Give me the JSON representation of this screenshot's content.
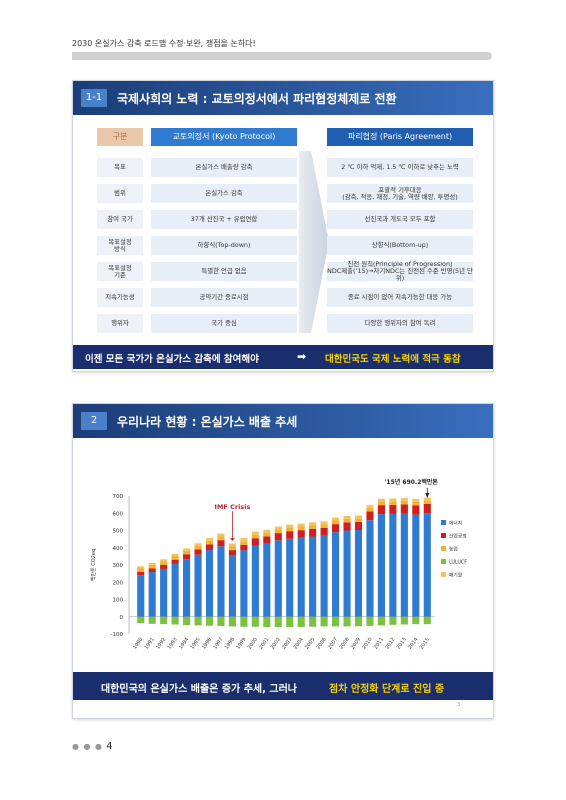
{
  "header": {
    "text": "2030 온실가스 감축 로드맵 수정·보완, 쟁점을 논하다!"
  },
  "slide1": {
    "num": "1-1",
    "title": "국제사회의 노력 : 교토의정서에서 파리협정체제로 전환",
    "col_gubun": "구분",
    "col_kyoto": "교토의정서 (Kyoto Protocol)",
    "col_paris": "파리협정 (Paris Agreement)",
    "rows": [
      {
        "label": "목표",
        "kyoto": "온실가스 배출량 감축",
        "paris": "2 ℃ 이하 억제, 1.5 ℃ 이하로 낮추는 노력"
      },
      {
        "label": "범위",
        "kyoto": "온실가스 감축",
        "paris": "포괄적 기후대응\n(감축, 적응, 재정, 기술, 역량 배양, 투명성)"
      },
      {
        "label": "참여 국가",
        "kyoto": "37개 선진국 + 유럽연합",
        "paris": "선진국과 개도국 모두 포함"
      },
      {
        "label": "목표설정\n방식",
        "kyoto": "하향식(Top-down)",
        "paris": "상향식(Bottom-up)"
      },
      {
        "label": "목표설정\n기준",
        "kyoto": "특별한 언급 없음",
        "paris": "진전 원칙(Principle of Progression)\nNDC제출(’15)→차기NDC는 진전된 수준 반영(5년 단위)"
      },
      {
        "label": "지속가능성",
        "kyoto": "공약기간 종료시점",
        "paris": "종료 시점이 없어 지속가능한 대응 가능"
      },
      {
        "label": "행위자",
        "kyoto": "국가 중심",
        "paris": "다양한 행위자의 참여 독려"
      }
    ],
    "footer_left": "이젠 모든 국가가 온실가스 감축에 참여해야",
    "footer_arrow": "➡",
    "footer_right": "대한민국도 국제 노력에 적극 동참"
  },
  "slide2": {
    "num": "2",
    "title": "우리나라 현황 : 온실가스 배출 추세",
    "footer_left": "대한민국의 온실가스 배출은 증가 추세,  그러나",
    "footer_right": "점차 안정화 단계로 진입 중",
    "page_marker": "3"
  },
  "page_number": "4",
  "page_dots": "● ● ●",
  "colors": {
    "energy": "#2f7bd1",
    "industrial": "#d11f1f",
    "agriculture": "#f2b233",
    "lulucf": "#7cc142",
    "waste": "#f5c35b",
    "nav": "#1b2f6e",
    "highlight": "#f6d000"
  },
  "chart_data": {
    "type": "bar",
    "stacked": true,
    "categories": [
      "1990",
      "1991",
      "1992",
      "1993",
      "1994",
      "1995",
      "1996",
      "1997",
      "1998",
      "1999",
      "2000",
      "2001",
      "2002",
      "2003",
      "2004",
      "2005",
      "2006",
      "2007",
      "2008",
      "2009",
      "2010",
      "2011",
      "2012",
      "2013",
      "2014",
      "2015"
    ],
    "series": [
      {
        "name": "에너지",
        "color": "#2f7bd1",
        "values": [
          241,
          259,
          277,
          306,
          333,
          360,
          387,
          409,
          356,
          385,
          413,
          425,
          443,
          452,
          458,
          465,
          470,
          490,
          500,
          503,
          560,
          595,
          596,
          598,
          592,
          600
        ]
      },
      {
        "name": "산업공정",
        "color": "#d11f1f",
        "values": [
          20,
          21,
          23,
          25,
          28,
          30,
          32,
          35,
          30,
          32,
          42,
          40,
          42,
          44,
          44,
          45,
          46,
          47,
          47,
          47,
          50,
          52,
          52,
          53,
          54,
          54
        ]
      },
      {
        "name": "농업",
        "color": "#f2b233",
        "values": [
          21,
          21,
          21,
          21,
          21,
          21,
          21,
          21,
          21,
          21,
          21,
          21,
          21,
          21,
          21,
          21,
          21,
          21,
          21,
          21,
          21,
          21,
          21,
          21,
          21,
          21
        ]
      },
      {
        "name": "LULUCF",
        "color": "#7cc142",
        "values": [
          -37,
          -41,
          -43,
          -45,
          -48,
          -50,
          -52,
          -54,
          -56,
          -58,
          -58,
          -60,
          -60,
          -60,
          -59,
          -58,
          -56,
          -56,
          -56,
          -55,
          -53,
          -50,
          -47,
          -45,
          -43,
          -43
        ]
      },
      {
        "name": "폐기물",
        "color": "#f5c35b",
        "values": [
          10,
          11,
          12,
          13,
          14,
          15,
          16,
          17,
          18,
          18,
          18,
          18,
          17,
          17,
          17,
          17,
          16,
          16,
          16,
          16,
          16,
          16,
          16,
          16,
          16,
          16
        ]
      }
    ],
    "ylabel": "백만톤 CO2eq",
    "ylim": [
      -100,
      700
    ],
    "yticks": [
      -100,
      0,
      100,
      200,
      300,
      400,
      500,
      600,
      700
    ],
    "annotations": [
      {
        "text": "IMF Crisis",
        "x": "1998"
      },
      {
        "text": "'15년 690.2백만톤",
        "x": "2015"
      }
    ],
    "legend": "right",
    "grid": false
  }
}
